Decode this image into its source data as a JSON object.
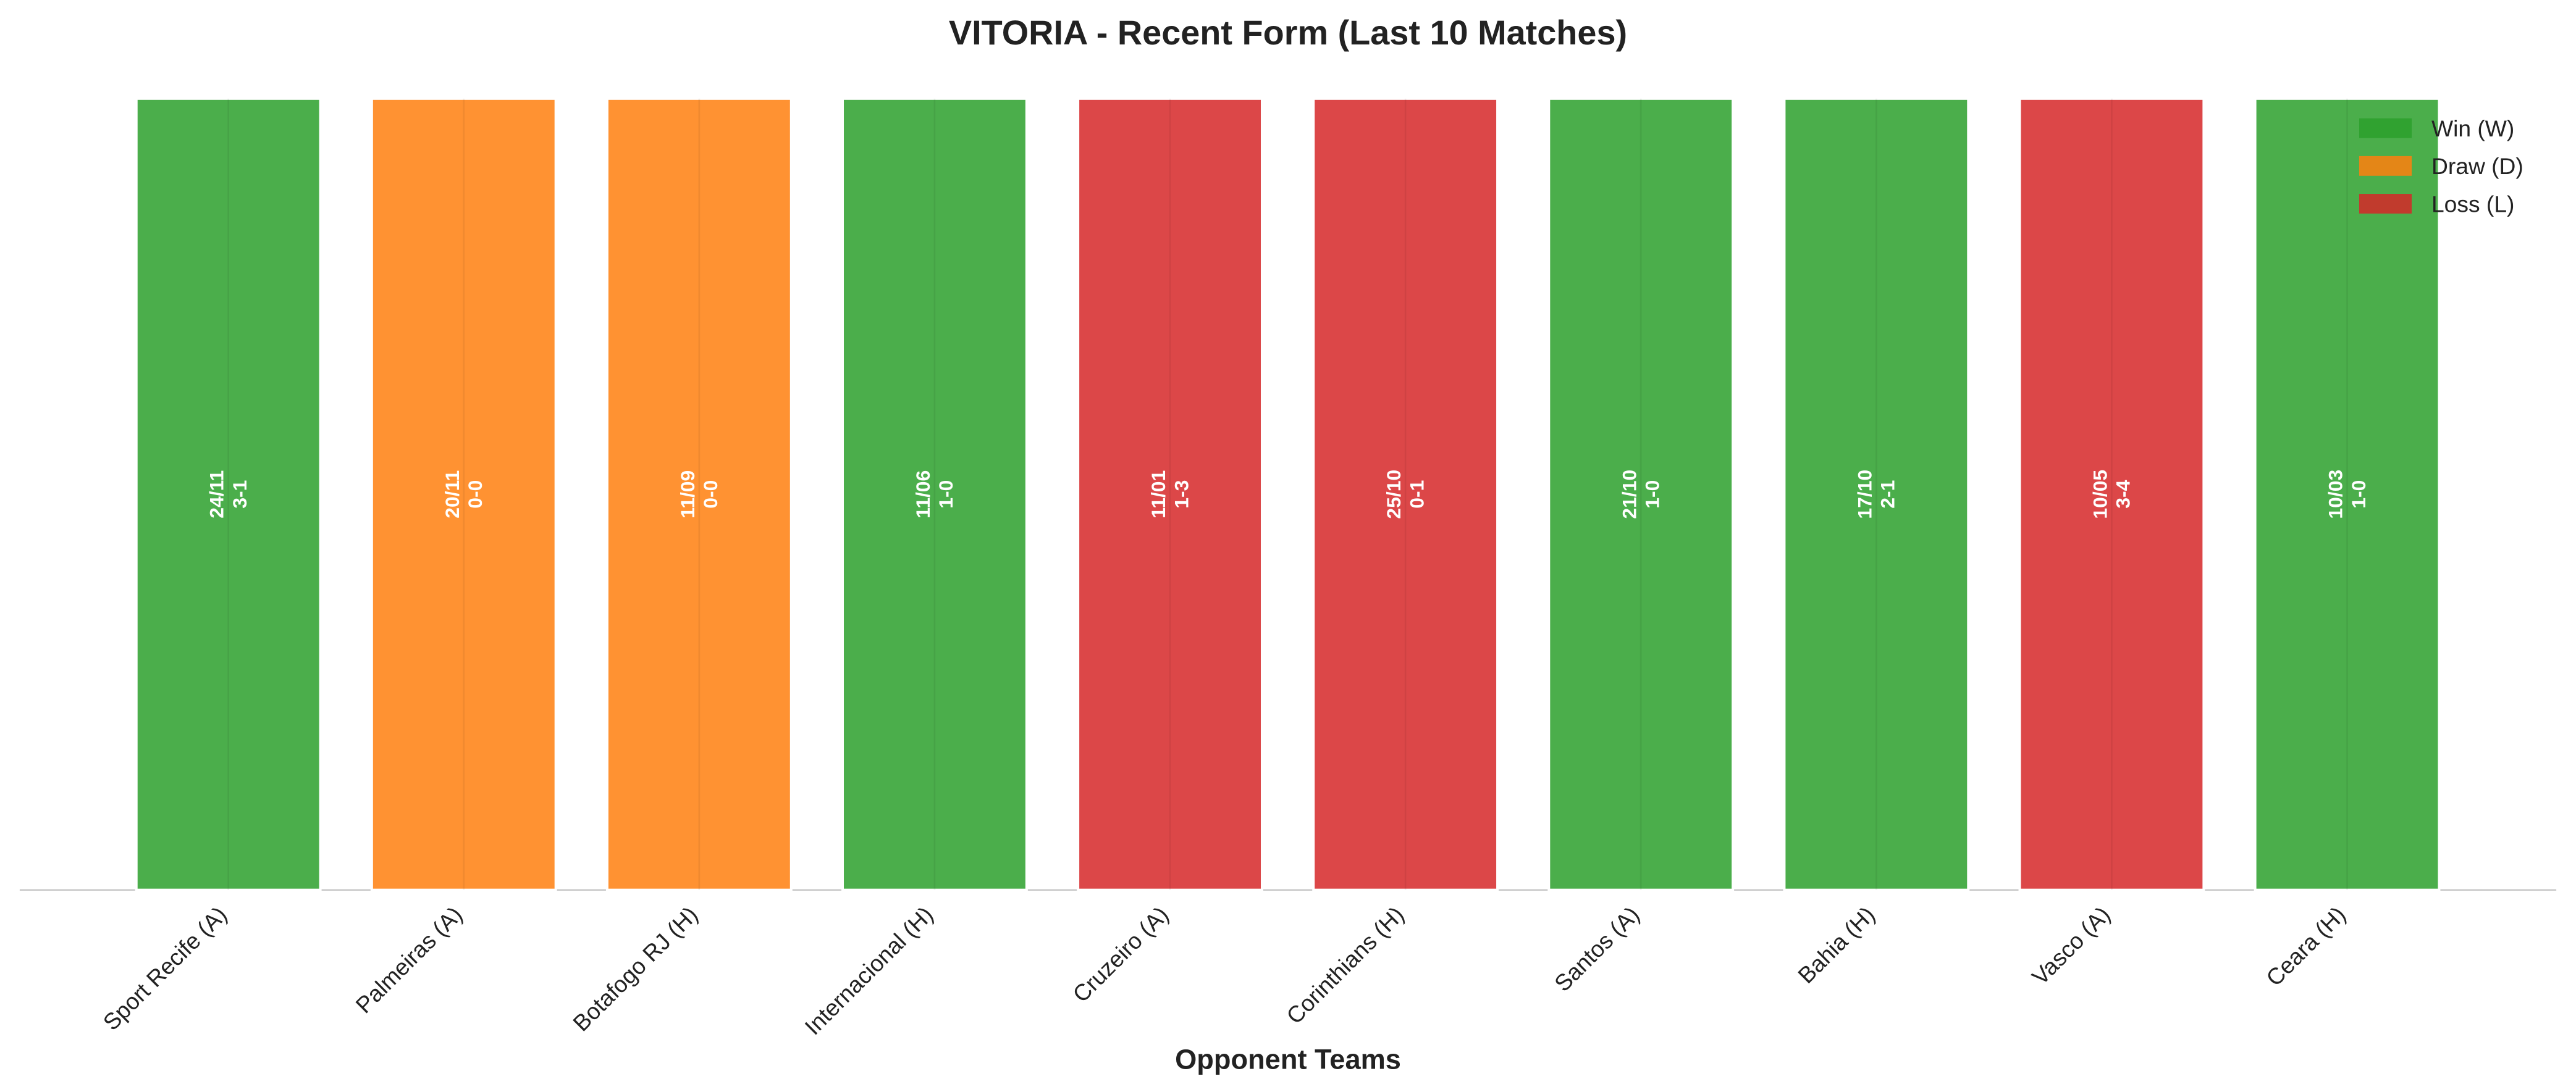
{
  "chart_data": {
    "type": "bar",
    "title": "VITORIA - Recent Form (Last 10 Matches)",
    "x_label": "Opponent Teams",
    "categories": [
      "Sport Recife (A)",
      "Palmeiras (A)",
      "Botafogo RJ (H)",
      "Internacional (H)",
      "Cruzeiro (A)",
      "Corinthians (H)",
      "Santos (A)",
      "Bahia (H)",
      "Vasco (A)",
      "Ceara (H)"
    ],
    "dates": [
      "24/11",
      "20/11",
      "11/09",
      "11/06",
      "11/01",
      "25/10",
      "21/10",
      "17/10",
      "10/05",
      "10/03"
    ],
    "scores": [
      "3-1",
      "0-0",
      "0-0",
      "1-0",
      "1-3",
      "0-1",
      "1-0",
      "2-1",
      "3-4",
      "1-0"
    ],
    "series": [
      {
        "name": "Win (W)",
        "color": "#2ca02c",
        "values": [
          1,
          null,
          null,
          1,
          null,
          null,
          1,
          1,
          null,
          1
        ]
      },
      {
        "name": "Draw (D)",
        "color": "#ff7f0e",
        "values": [
          null,
          1,
          1,
          null,
          null,
          null,
          null,
          null,
          null,
          null
        ]
      },
      {
        "name": "Loss (L)",
        "color": "#d62728",
        "values": [
          null,
          null,
          null,
          null,
          1,
          1,
          null,
          null,
          1,
          null
        ]
      }
    ],
    "ylim": [
      0,
      1
    ],
    "legend": "upper right"
  }
}
